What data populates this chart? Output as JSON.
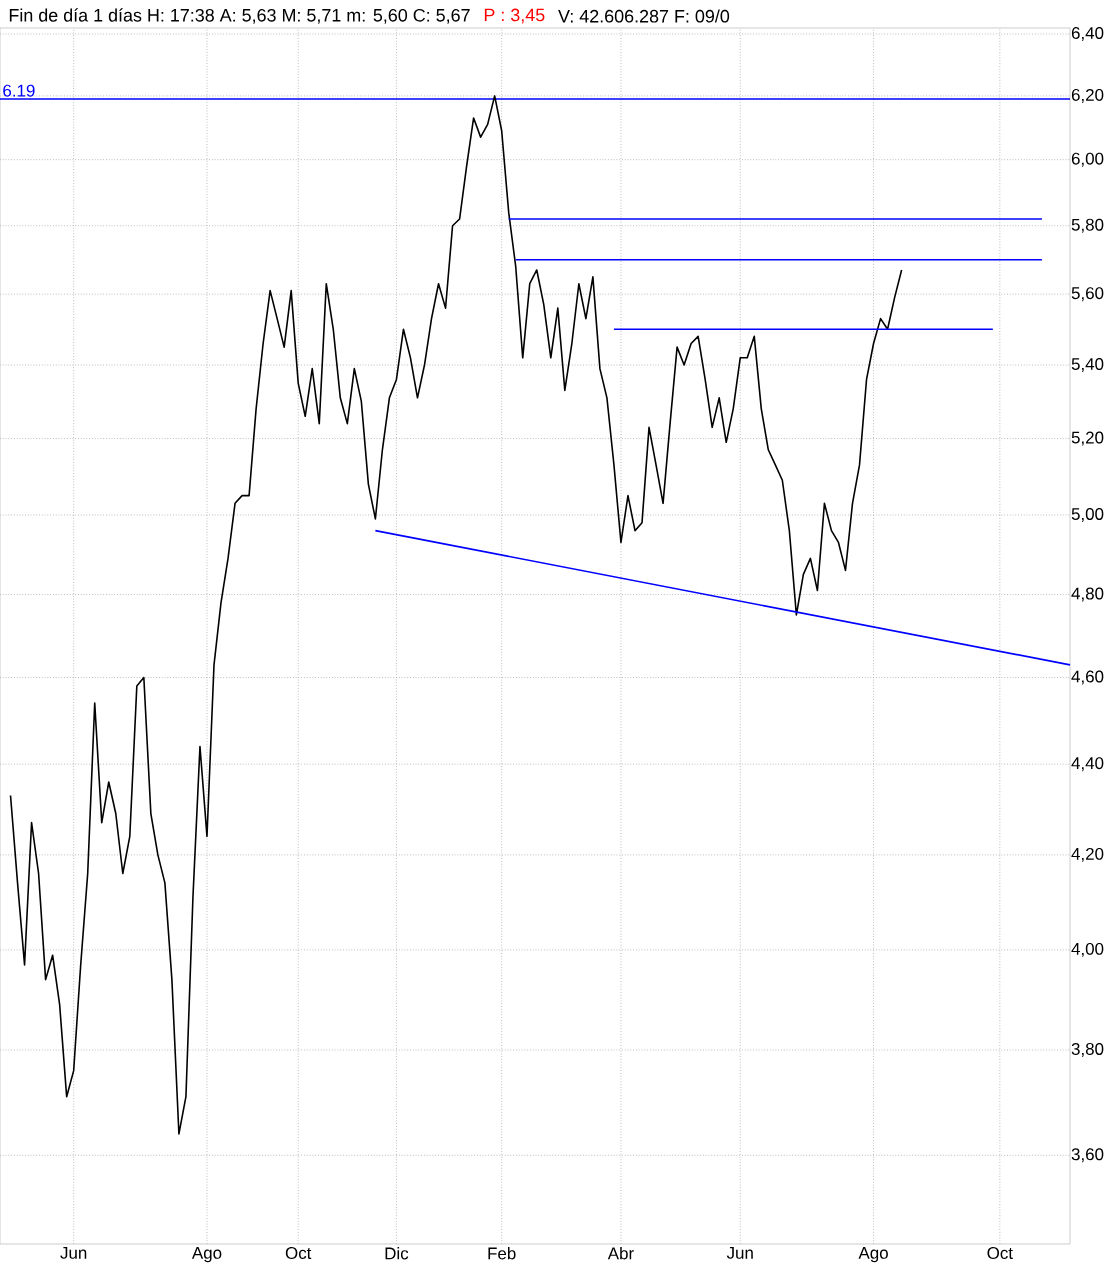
{
  "chart_data": {
    "type": "line",
    "title": "Fin de día 1 días  H: 17:38  A: 5,63  M: 5,71  m: 5,60  C: 5,67",
    "annotations": [
      "P : 3,45",
      "V: 42.606.287  F: 09/0"
    ],
    "log": "y",
    "grid": true,
    "ylim": [
      3.44,
      6.42
    ],
    "categories": [
      null,
      null,
      null,
      null,
      null,
      null,
      null,
      null,
      null,
      "Jun",
      null,
      null,
      null,
      null,
      null,
      null,
      null,
      null,
      null,
      null,
      null,
      null,
      null,
      null,
      null,
      null,
      null,
      null,
      "Ago",
      null,
      null,
      null,
      null,
      null,
      null,
      null,
      null,
      null,
      null,
      null,
      null,
      "Oct",
      null,
      null,
      null,
      null,
      null,
      null,
      null,
      null,
      null,
      null,
      null,
      null,
      null,
      "Dic",
      null,
      null,
      null,
      null,
      null,
      null,
      null,
      null,
      null,
      null,
      null,
      null,
      null,
      null,
      "Feb",
      null,
      null,
      null,
      null,
      null,
      null,
      null,
      null,
      null,
      null,
      null,
      null,
      null,
      null,
      null,
      null,
      "Abr",
      null,
      null,
      null,
      null,
      null,
      null,
      null,
      null,
      null,
      null,
      null,
      null,
      null,
      null,
      null,
      null,
      "Jun",
      null,
      null,
      null,
      null,
      null,
      null,
      null,
      null,
      null,
      null,
      null,
      null,
      null,
      null,
      null,
      null,
      null,
      null,
      "Ago",
      null,
      null,
      null,
      null,
      null,
      null,
      null,
      null,
      null,
      null,
      null,
      null,
      null,
      null,
      null,
      null,
      null,
      "Oct",
      null,
      null,
      null,
      null,
      null,
      null,
      null,
      null,
      null,
      null
    ],
    "yticks": [
      {
        "value": 3.6,
        "label": "3,60"
      },
      {
        "value": 3.8,
        "label": "3,80"
      },
      {
        "value": 4.0,
        "label": "4,00"
      },
      {
        "value": 4.2,
        "label": "4,20"
      },
      {
        "value": 4.4,
        "label": "4,40"
      },
      {
        "value": 4.6,
        "label": "4,60"
      },
      {
        "value": 4.8,
        "label": "4,80"
      },
      {
        "value": 5.0,
        "label": "5,00"
      },
      {
        "value": 5.2,
        "label": "5,20"
      },
      {
        "value": 5.4,
        "label": "5,40"
      },
      {
        "value": 5.6,
        "label": "5,60"
      },
      {
        "value": 5.8,
        "label": "5,80"
      },
      {
        "value": 6.0,
        "label": "6,00"
      },
      {
        "value": 6.2,
        "label": "6,20"
      },
      {
        "value": 6.4,
        "label": "6,40"
      }
    ],
    "ref_lines": [
      {
        "axis": "y",
        "value": 6.19,
        "label": "6.19",
        "color": "#0000ff"
      }
    ],
    "series": [
      {
        "color": "#000000",
        "values": [
          4.33,
          4.14,
          3.97,
          4.27,
          4.16,
          3.94,
          3.99,
          3.89,
          3.71,
          3.76,
          3.97,
          4.16,
          4.54,
          4.27,
          4.36,
          4.29,
          4.16,
          4.24,
          4.58,
          4.6,
          4.29,
          4.2,
          4.14,
          3.94,
          3.64,
          3.71,
          4.11,
          4.44,
          4.24,
          4.63,
          4.78,
          4.89,
          5.03,
          5.05,
          5.05,
          5.28,
          5.46,
          5.61,
          5.53,
          5.45,
          5.61,
          5.35,
          5.26,
          5.39,
          5.24,
          5.63,
          5.5,
          5.31,
          5.24,
          5.39,
          5.3,
          5.08,
          4.99,
          5.17,
          5.31,
          5.36,
          5.5,
          5.42,
          5.31,
          5.4,
          5.53,
          5.63,
          5.56,
          5.8,
          5.82,
          5.98,
          6.13,
          6.07,
          6.11,
          6.2,
          6.09,
          5.84,
          5.68,
          5.42,
          5.63,
          5.67,
          5.57,
          5.42,
          5.56,
          5.33,
          5.46,
          5.63,
          5.53,
          5.65,
          5.39,
          5.31,
          5.13,
          4.93,
          5.05,
          4.96,
          4.98,
          5.23,
          5.13,
          5.03,
          5.24,
          5.45,
          5.4,
          5.46,
          5.48,
          5.36,
          5.23,
          5.31,
          5.19,
          5.28,
          5.42,
          5.42,
          5.48,
          5.28,
          5.17,
          5.13,
          5.09,
          4.96,
          4.75,
          4.85,
          4.89,
          4.81,
          5.03,
          4.96,
          4.93,
          4.86,
          5.03,
          5.13,
          5.36,
          5.46,
          5.53,
          5.5,
          5.59,
          5.67,
          null,
          null,
          null,
          null,
          null,
          null,
          null,
          null,
          null,
          null,
          null,
          null,
          null,
          null,
          null,
          null,
          null,
          null,
          null,
          null,
          null,
          null,
          null,
          null
        ]
      },
      {
        "color": "#0000ff",
        "values": [
          null,
          null,
          null,
          null,
          null,
          null,
          null,
          null,
          null,
          null,
          null,
          null,
          null,
          null,
          null,
          null,
          null,
          null,
          null,
          null,
          null,
          null,
          null,
          null,
          null,
          null,
          null,
          null,
          null,
          null,
          null,
          null,
          null,
          null,
          null,
          null,
          null,
          null,
          null,
          null,
          null,
          null,
          null,
          null,
          null,
          null,
          null,
          null,
          null,
          null,
          null,
          null,
          4.96,
          null,
          null,
          null,
          null,
          null,
          null,
          null,
          null,
          null,
          null,
          null,
          null,
          null,
          null,
          null,
          null,
          null,
          null,
          null,
          null,
          null,
          null,
          null,
          null,
          null,
          null,
          null,
          null,
          null,
          null,
          null,
          null,
          null,
          null,
          null,
          null,
          null,
          null,
          null,
          null,
          null,
          null,
          null,
          null,
          null,
          null,
          null,
          null,
          null,
          null,
          null,
          null,
          null,
          null,
          null,
          null,
          null,
          null,
          null,
          null,
          null,
          null,
          null,
          null,
          null,
          null,
          null,
          null,
          null,
          null,
          null,
          null,
          null,
          null,
          null,
          null,
          null,
          null,
          null,
          null,
          null,
          null,
          null,
          null,
          null,
          null,
          null,
          null,
          null,
          null,
          null,
          null,
          null,
          null,
          null,
          null,
          null,
          null,
          4.63
        ]
      },
      {
        "color": "#0000ff",
        "values": [
          null,
          null,
          null,
          null,
          null,
          null,
          null,
          null,
          null,
          null,
          null,
          null,
          null,
          null,
          null,
          null,
          null,
          null,
          null,
          null,
          null,
          null,
          null,
          null,
          null,
          null,
          null,
          null,
          null,
          null,
          null,
          null,
          null,
          null,
          null,
          null,
          null,
          null,
          null,
          null,
          null,
          null,
          null,
          null,
          null,
          null,
          null,
          null,
          null,
          null,
          null,
          null,
          null,
          null,
          null,
          null,
          null,
          null,
          null,
          null,
          null,
          null,
          null,
          null,
          null,
          null,
          null,
          null,
          null,
          null,
          null,
          5.82,
          null,
          null,
          null,
          null,
          null,
          null,
          null,
          null,
          null,
          null,
          null,
          null,
          null,
          null,
          null,
          null,
          null,
          null,
          null,
          null,
          null,
          null,
          null,
          null,
          null,
          null,
          null,
          null,
          null,
          null,
          null,
          null,
          null,
          null,
          null,
          null,
          null,
          null,
          null,
          null,
          null,
          null,
          null,
          null,
          null,
          null,
          null,
          null,
          null,
          null,
          null,
          null,
          null,
          null,
          null,
          null,
          null,
          null,
          null,
          null,
          null,
          null,
          null,
          null,
          null,
          null,
          null,
          null,
          null,
          null,
          null,
          null,
          null,
          null,
          null,
          5.82,
          null,
          null,
          null,
          null
        ]
      },
      {
        "color": "#0000ff",
        "values": [
          null,
          null,
          null,
          null,
          null,
          null,
          null,
          null,
          null,
          null,
          null,
          null,
          null,
          null,
          null,
          null,
          null,
          null,
          null,
          null,
          null,
          null,
          null,
          null,
          null,
          null,
          null,
          null,
          null,
          null,
          null,
          null,
          null,
          null,
          null,
          null,
          null,
          null,
          null,
          null,
          null,
          null,
          null,
          null,
          null,
          null,
          null,
          null,
          null,
          null,
          null,
          null,
          null,
          null,
          null,
          null,
          null,
          null,
          null,
          null,
          null,
          null,
          null,
          null,
          null,
          null,
          null,
          null,
          null,
          null,
          null,
          null,
          5.7,
          null,
          null,
          null,
          null,
          null,
          null,
          null,
          null,
          null,
          null,
          null,
          null,
          null,
          null,
          null,
          null,
          null,
          null,
          null,
          null,
          null,
          null,
          null,
          null,
          null,
          null,
          null,
          null,
          null,
          null,
          null,
          null,
          null,
          null,
          null,
          null,
          null,
          null,
          null,
          null,
          null,
          null,
          null,
          null,
          null,
          null,
          null,
          null,
          null,
          null,
          null,
          null,
          null,
          null,
          null,
          null,
          null,
          null,
          null,
          null,
          null,
          null,
          null,
          null,
          null,
          null,
          null,
          null,
          null,
          null,
          null,
          null,
          null,
          null,
          5.7,
          null,
          null,
          null,
          null
        ]
      },
      {
        "color": "#0000ff",
        "values": [
          null,
          null,
          null,
          null,
          null,
          null,
          null,
          null,
          null,
          null,
          null,
          null,
          null,
          null,
          null,
          null,
          null,
          null,
          null,
          null,
          null,
          null,
          null,
          null,
          null,
          null,
          null,
          null,
          null,
          null,
          null,
          null,
          null,
          null,
          null,
          null,
          null,
          null,
          null,
          null,
          null,
          null,
          null,
          null,
          null,
          null,
          null,
          null,
          null,
          null,
          null,
          null,
          null,
          null,
          null,
          null,
          null,
          null,
          null,
          null,
          null,
          null,
          null,
          null,
          null,
          null,
          null,
          null,
          null,
          null,
          null,
          null,
          null,
          null,
          null,
          null,
          null,
          null,
          null,
          null,
          null,
          null,
          null,
          null,
          null,
          null,
          5.5,
          null,
          null,
          null,
          null,
          null,
          null,
          null,
          null,
          null,
          null,
          null,
          null,
          null,
          null,
          null,
          null,
          null,
          null,
          null,
          null,
          null,
          null,
          null,
          null,
          null,
          null,
          null,
          null,
          null,
          null,
          null,
          null,
          null,
          null,
          null,
          null,
          null,
          null,
          null,
          null,
          null,
          null,
          null,
          null,
          null,
          null,
          null,
          null,
          null,
          null,
          null,
          null,
          null,
          5.5,
          null,
          null,
          null,
          null,
          null,
          null,
          null,
          null,
          null,
          null,
          null
        ]
      }
    ]
  }
}
